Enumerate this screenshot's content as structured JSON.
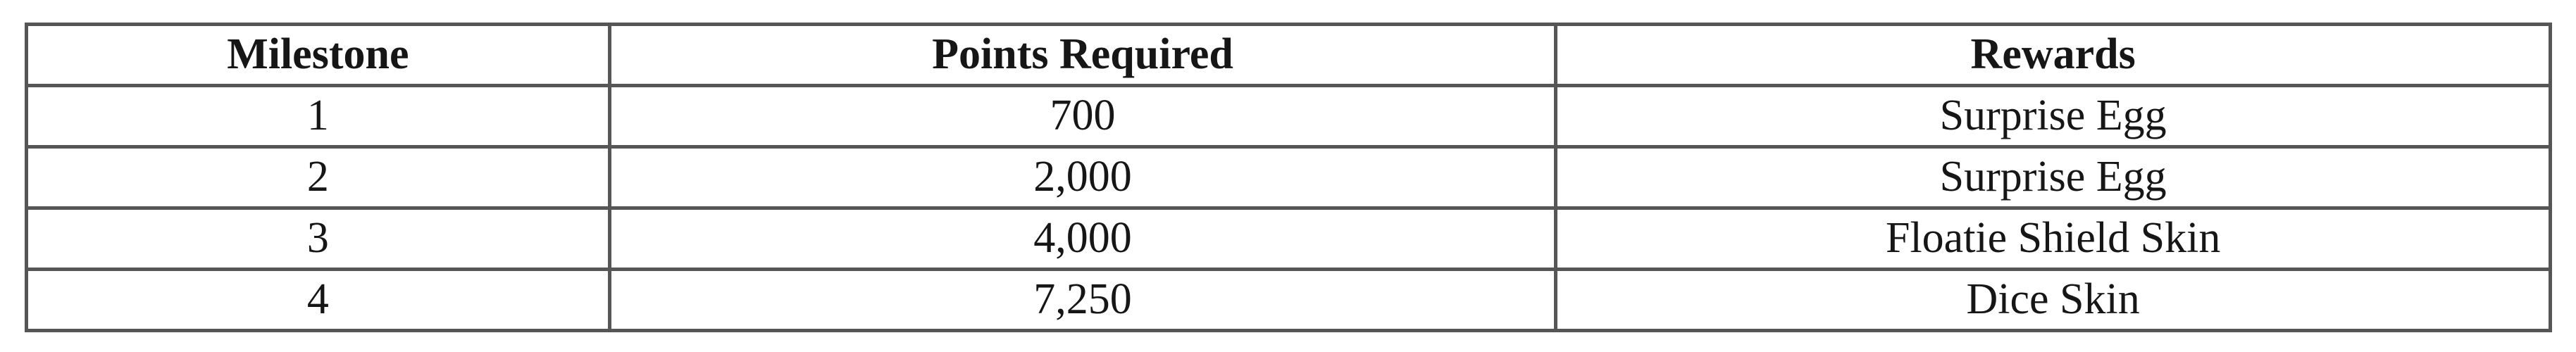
{
  "table": {
    "columns": [
      "Milestone",
      "Points Required",
      "Rewards"
    ],
    "rows": [
      [
        "1",
        "700",
        "Surprise Egg"
      ],
      [
        "2",
        "2,000",
        "Surprise Egg"
      ],
      [
        "3",
        "4,000",
        "Floatie Shield Skin"
      ],
      [
        "4",
        "7,250",
        "Dice Skin"
      ]
    ]
  },
  "colors": {
    "border": "#565656",
    "text": "#161616",
    "background": "#ffffff"
  }
}
